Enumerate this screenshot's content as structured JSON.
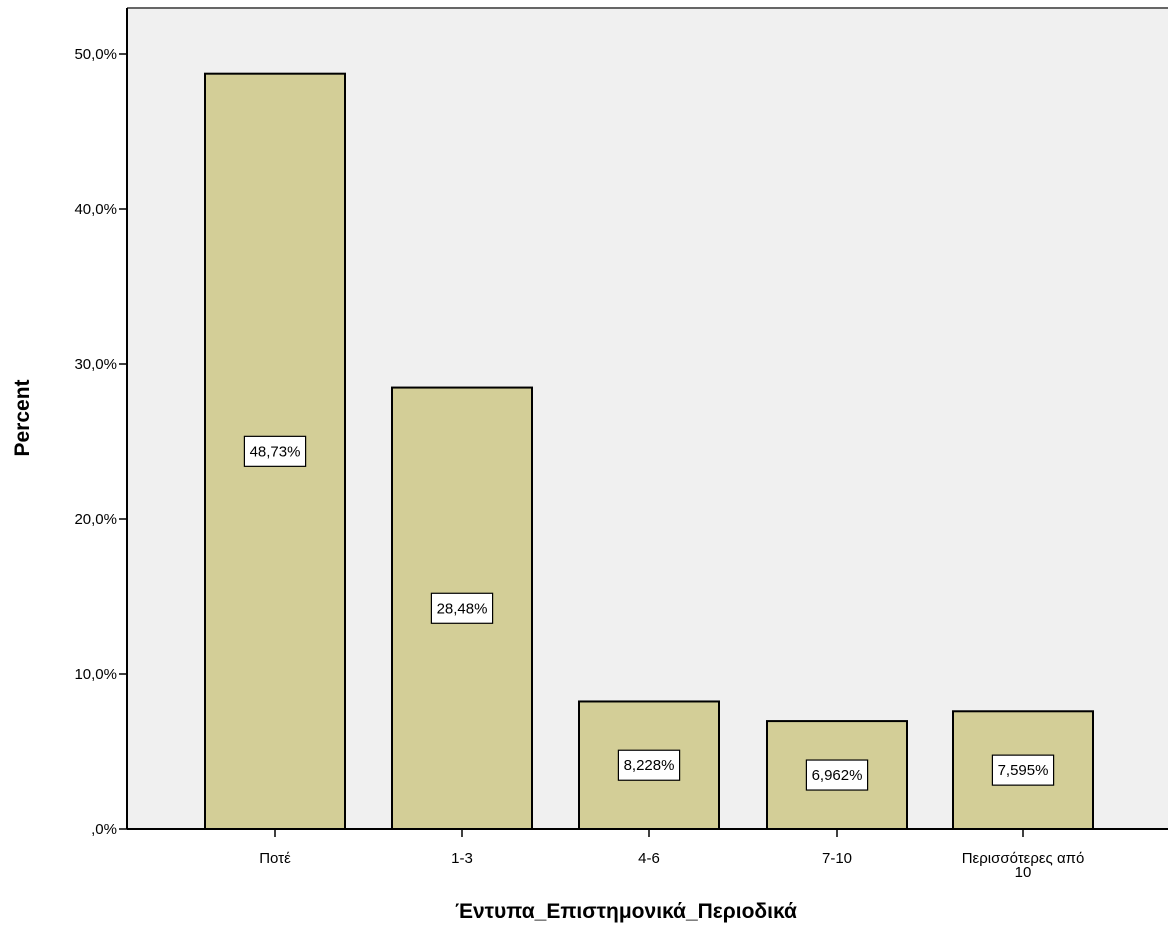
{
  "chart_data": {
    "type": "bar",
    "title": "",
    "xlabel": "Έντυπα_Επιστημονικά_Περιοδικά",
    "ylabel": "Percent",
    "categories": [
      "Ποτέ",
      "1-3",
      "4-6",
      "7-10",
      "Περισσότερες από 10"
    ],
    "category_lines": [
      [
        "Ποτέ"
      ],
      [
        "1-3"
      ],
      [
        "4-6"
      ],
      [
        "7-10"
      ],
      [
        "Περισσότερες από",
        "10"
      ]
    ],
    "values": [
      48.73,
      28.48,
      8.228,
      6.962,
      7.595
    ],
    "data_labels": [
      "48,73%",
      "28,48%",
      "8,228%",
      "6,962%",
      "7,595%"
    ],
    "ylim": [
      0,
      53
    ],
    "yticks": [
      0,
      10,
      20,
      30,
      40,
      50
    ],
    "ytick_labels": [
      ",0%",
      "10,0%",
      "20,0%",
      "30,0%",
      "40,0%",
      "50,0%"
    ],
    "grid": false,
    "legend": "none",
    "colors": {
      "bar_fill": "#d3ce97",
      "bar_stroke": "#000000",
      "plot_background": "#f0f0f0",
      "frame": "#666666"
    }
  }
}
